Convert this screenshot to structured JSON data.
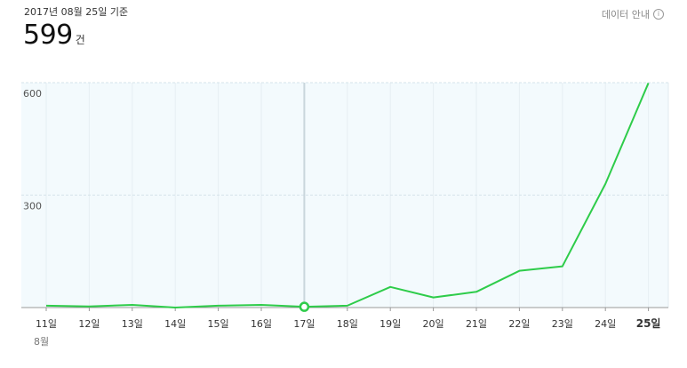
{
  "header": {
    "date_label": "2017년 08월 25일 기준",
    "total_value": "599",
    "total_unit": "건",
    "data_info_label": "데이터 안내",
    "info_icon": "i"
  },
  "colors": {
    "line": "#2ecc4a",
    "plot_bg": "#f3fafd",
    "grid": "#d5e3ea",
    "highlight": "#c9d6dc"
  },
  "chart_data": {
    "type": "line",
    "title": "",
    "xlabel": "",
    "ylabel": "",
    "categories": [
      "11일",
      "12일",
      "13일",
      "14일",
      "15일",
      "16일",
      "17일",
      "18일",
      "19일",
      "20일",
      "21일",
      "22일",
      "23일",
      "24일",
      "25일"
    ],
    "month_label": "8월",
    "values": [
      5,
      3,
      7,
      0,
      5,
      7,
      2,
      5,
      55,
      27,
      42,
      98,
      110,
      330,
      599
    ],
    "ylim": [
      0,
      600
    ],
    "yticks": [
      300,
      600
    ],
    "ytick_labels": [
      "300",
      "600"
    ],
    "highlight_index": 6,
    "bold_category_index": 14,
    "grid": true
  }
}
